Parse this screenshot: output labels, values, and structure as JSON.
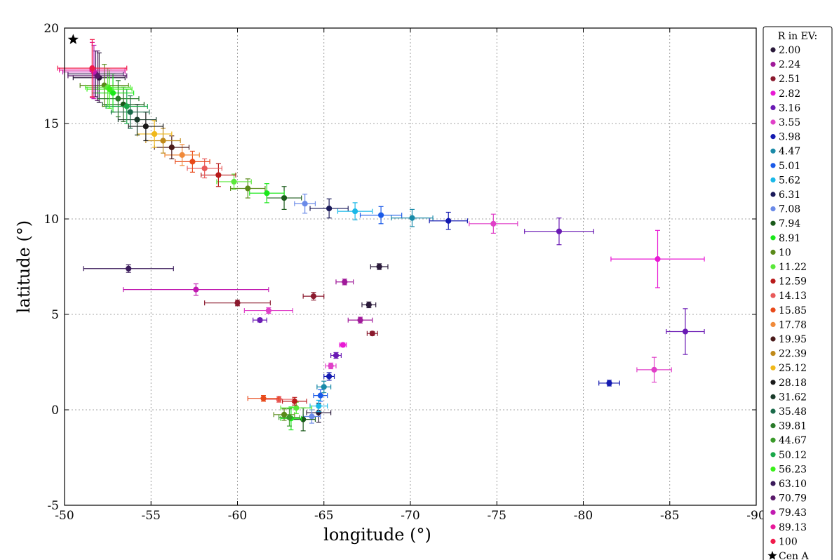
{
  "chart_data": {
    "type": "scatter",
    "title": "",
    "xlabel": "longitude (°)",
    "ylabel": "latitude (°)",
    "xlim": [
      -50,
      -90
    ],
    "ylim": [
      -5,
      20
    ],
    "xticks": [
      -50,
      -55,
      -60,
      -65,
      -70,
      -75,
      -80,
      -85,
      -90
    ],
    "yticks": [
      -5,
      0,
      5,
      10,
      15,
      20
    ],
    "grid": true,
    "legend_title": "R in EV:",
    "legend_position": "right",
    "reference_point": {
      "label": "Cen A",
      "x": -50.5,
      "y": 19.4,
      "marker": "star",
      "color": "#000000"
    },
    "series": [
      {
        "name": "2.00",
        "color": "#2a1a3a",
        "points": [
          {
            "x": -52.0,
            "y": 17.4,
            "xerr": 1.5,
            "yerr": 1.3
          },
          {
            "x": -68.2,
            "y": 7.5,
            "xerr": 0.5,
            "yerr": 0.15
          },
          {
            "x": -67.6,
            "y": 5.5,
            "xerr": 0.4,
            "yerr": 0.15
          },
          {
            "x": -64.7,
            "y": -0.15,
            "xerr": 0.7,
            "yerr": 0.5
          }
        ]
      },
      {
        "name": "2.24",
        "color": "#a01a9a",
        "points": [
          {
            "x": -66.2,
            "y": 6.7,
            "xerr": 0.5,
            "yerr": 0.15
          },
          {
            "x": -67.1,
            "y": 4.7,
            "xerr": 0.7,
            "yerr": 0.15
          }
        ]
      },
      {
        "name": "2.51",
        "color": "#8b1a2e",
        "points": [
          {
            "x": -64.4,
            "y": 5.95,
            "xerr": 0.6,
            "yerr": 0.2
          },
          {
            "x": -67.8,
            "y": 4.0,
            "xerr": 0.3,
            "yerr": 0.1
          },
          {
            "x": -60.0,
            "y": 5.6,
            "xerr": 1.9,
            "yerr": 0.15
          }
        ]
      },
      {
        "name": "2.82",
        "color": "#e81ad4",
        "points": [
          {
            "x": -84.3,
            "y": 7.9,
            "xerr": 2.7,
            "yerr": 1.5
          },
          {
            "x": -66.1,
            "y": 3.4,
            "xerr": 0.2,
            "yerr": 0.1
          }
        ]
      },
      {
        "name": "3.16",
        "color": "#6a1ab4",
        "points": [
          {
            "x": -78.6,
            "y": 9.35,
            "xerr": 2.0,
            "yerr": 0.7
          },
          {
            "x": -85.9,
            "y": 4.1,
            "xerr": 1.1,
            "yerr": 1.2
          },
          {
            "x": -61.3,
            "y": 4.7,
            "xerr": 0.4,
            "yerr": 0.1
          },
          {
            "x": -65.7,
            "y": 2.85,
            "xerr": 0.3,
            "yerr": 0.15
          }
        ]
      },
      {
        "name": "3.55",
        "color": "#e040c8",
        "points": [
          {
            "x": -74.8,
            "y": 9.75,
            "xerr": 1.4,
            "yerr": 0.5
          },
          {
            "x": -84.1,
            "y": 2.1,
            "xerr": 1.0,
            "yerr": 0.65
          },
          {
            "x": -65.4,
            "y": 2.3,
            "xerr": 0.3,
            "yerr": 0.15
          },
          {
            "x": -61.8,
            "y": 5.2,
            "xerr": 1.4,
            "yerr": 0.15
          }
        ]
      },
      {
        "name": "3.98",
        "color": "#141ab0",
        "points": [
          {
            "x": -72.2,
            "y": 9.9,
            "xerr": 1.1,
            "yerr": 0.45
          },
          {
            "x": -81.5,
            "y": 1.4,
            "xerr": 0.6,
            "yerr": 0.15
          },
          {
            "x": -65.3,
            "y": 1.75,
            "xerr": 0.3,
            "yerr": 0.2
          }
        ]
      },
      {
        "name": "4.47",
        "color": "#1a8aa8",
        "points": [
          {
            "x": -70.1,
            "y": 10.05,
            "xerr": 1.2,
            "yerr": 0.45
          },
          {
            "x": -65.0,
            "y": 1.2,
            "xerr": 0.4,
            "yerr": 0.3
          }
        ]
      },
      {
        "name": "5.01",
        "color": "#1a5ae8",
        "points": [
          {
            "x": -68.3,
            "y": 10.2,
            "xerr": 1.2,
            "yerr": 0.45
          },
          {
            "x": -64.8,
            "y": 0.75,
            "xerr": 0.4,
            "yerr": 0.3
          }
        ]
      },
      {
        "name": "5.62",
        "color": "#1ab8e8",
        "points": [
          {
            "x": -66.8,
            "y": 10.4,
            "xerr": 1.0,
            "yerr": 0.45
          },
          {
            "x": -64.7,
            "y": 0.2,
            "xerr": 0.5,
            "yerr": 0.3
          }
        ]
      },
      {
        "name": "6.31",
        "color": "#1a1a5a",
        "points": [
          {
            "x": -65.3,
            "y": 10.55,
            "xerr": 1.1,
            "yerr": 0.5
          }
        ]
      },
      {
        "name": "7.08",
        "color": "#6a8ae8",
        "points": [
          {
            "x": -63.9,
            "y": 10.8,
            "xerr": 0.6,
            "yerr": 0.5
          },
          {
            "x": -64.3,
            "y": -0.35,
            "xerr": 0.5,
            "yerr": 0.35
          }
        ]
      },
      {
        "name": "7.94",
        "color": "#1a5a1a",
        "points": [
          {
            "x": -53.4,
            "y": 16.0,
            "xerr": 1.2,
            "yerr": 0.9
          },
          {
            "x": -62.7,
            "y": 11.1,
            "xerr": 1.0,
            "yerr": 0.6
          },
          {
            "x": -63.8,
            "y": -0.5,
            "xerr": 0.7,
            "yerr": 0.6
          }
        ]
      },
      {
        "name": "8.91",
        "color": "#1ae81a",
        "points": [
          {
            "x": -52.8,
            "y": 16.6,
            "xerr": 1.2,
            "yerr": 1.0
          },
          {
            "x": -61.7,
            "y": 11.35,
            "xerr": 1.0,
            "yerr": 0.5
          },
          {
            "x": -63.1,
            "y": -0.45,
            "xerr": 0.6,
            "yerr": 0.6
          }
        ]
      },
      {
        "name": "10",
        "color": "#5a8a1a",
        "points": [
          {
            "x": -52.3,
            "y": 17.0,
            "xerr": 1.4,
            "yerr": 1.1
          },
          {
            "x": -60.6,
            "y": 11.6,
            "xerr": 1.0,
            "yerr": 0.5
          },
          {
            "x": -62.7,
            "y": -0.25,
            "xerr": 0.6,
            "yerr": 0.3
          }
        ]
      },
      {
        "name": "11.22",
        "color": "#5ae83a",
        "points": [
          {
            "x": -52.5,
            "y": 16.9,
            "xerr": 1.3,
            "yerr": 1.0
          },
          {
            "x": -59.8,
            "y": 11.95,
            "xerr": 1.0,
            "yerr": 0.4
          },
          {
            "x": -63.4,
            "y": 0.1,
            "xerr": 0.9,
            "yerr": 0.3
          }
        ]
      },
      {
        "name": "12.59",
        "color": "#b81a1a",
        "points": [
          {
            "x": -58.9,
            "y": 12.3,
            "xerr": 1.0,
            "yerr": 0.6
          },
          {
            "x": -63.3,
            "y": 0.45,
            "xerr": 0.7,
            "yerr": 0.2
          }
        ]
      },
      {
        "name": "14.13",
        "color": "#e85a5a",
        "points": [
          {
            "x": -58.1,
            "y": 12.65,
            "xerr": 1.0,
            "yerr": 0.5
          },
          {
            "x": -62.4,
            "y": 0.55,
            "xerr": 0.8,
            "yerr": 0.15
          }
        ]
      },
      {
        "name": "15.85",
        "color": "#e84a1a",
        "points": [
          {
            "x": -57.4,
            "y": 13.0,
            "xerr": 1.0,
            "yerr": 0.55
          },
          {
            "x": -61.5,
            "y": 0.6,
            "xerr": 0.9,
            "yerr": 0.15
          }
        ]
      },
      {
        "name": "17.78",
        "color": "#f08a3a",
        "points": [
          {
            "x": -56.8,
            "y": 13.35,
            "xerr": 1.0,
            "yerr": 0.55
          }
        ]
      },
      {
        "name": "19.95",
        "color": "#4a1a1a",
        "points": [
          {
            "x": -56.2,
            "y": 13.75,
            "xerr": 1.0,
            "yerr": 0.6
          }
        ]
      },
      {
        "name": "22.39",
        "color": "#c08a1a",
        "points": [
          {
            "x": -55.7,
            "y": 14.1,
            "xerr": 1.0,
            "yerr": 0.65
          }
        ]
      },
      {
        "name": "25.12",
        "color": "#f0b81a",
        "points": [
          {
            "x": -55.2,
            "y": 14.45,
            "xerr": 1.0,
            "yerr": 0.7
          }
        ]
      },
      {
        "name": "28.18",
        "color": "#1a1a1a",
        "points": [
          {
            "x": -54.7,
            "y": 14.85,
            "xerr": 1.0,
            "yerr": 0.75
          }
        ]
      },
      {
        "name": "31.62",
        "color": "#1a3a2a",
        "points": [
          {
            "x": -54.2,
            "y": 15.2,
            "xerr": 1.1,
            "yerr": 0.8
          }
        ]
      },
      {
        "name": "35.48",
        "color": "#1a6a4a",
        "points": [
          {
            "x": -53.8,
            "y": 15.6,
            "xerr": 1.1,
            "yerr": 0.85
          }
        ]
      },
      {
        "name": "39.81",
        "color": "#2a7a2a",
        "points": [
          {
            "x": -53.1,
            "y": 16.3,
            "xerr": 1.2,
            "yerr": 0.95
          }
        ]
      },
      {
        "name": "44.67",
        "color": "#3a9a2a",
        "points": [
          {
            "x": -63.0,
            "y": -0.4,
            "xerr": 0.6,
            "yerr": 0.45
          }
        ]
      },
      {
        "name": "50.12",
        "color": "#1aa84a",
        "points": [
          {
            "x": -53.6,
            "y": 15.9,
            "xerr": 1.2,
            "yerr": 0.9
          }
        ]
      },
      {
        "name": "56.23",
        "color": "#3af01a",
        "points": [
          {
            "x": -52.6,
            "y": 16.8,
            "xerr": 1.3,
            "yerr": 1.0
          }
        ]
      },
      {
        "name": "63.10",
        "color": "#3a1a5a",
        "points": [
          {
            "x": -53.7,
            "y": 7.4,
            "xerr": 2.6,
            "yerr": 0.2
          },
          {
            "x": -51.8,
            "y": 17.6,
            "xerr": 1.6,
            "yerr": 1.2
          }
        ]
      },
      {
        "name": "70.79",
        "color": "#5a1a6a",
        "points": [
          {
            "x": -51.9,
            "y": 17.5,
            "xerr": 1.7,
            "yerr": 1.3
          }
        ]
      },
      {
        "name": "79.43",
        "color": "#c01ab0",
        "points": [
          {
            "x": -57.6,
            "y": 6.3,
            "xerr": 4.2,
            "yerr": 0.3
          },
          {
            "x": -51.7,
            "y": 17.7,
            "xerr": 1.8,
            "yerr": 1.4
          }
        ]
      },
      {
        "name": "89.13",
        "color": "#e81a9a",
        "points": [
          {
            "x": -51.6,
            "y": 17.8,
            "xerr": 1.9,
            "yerr": 1.45
          }
        ]
      },
      {
        "name": "100",
        "color": "#f01a4a",
        "points": [
          {
            "x": -51.6,
            "y": 17.9,
            "xerr": 2.0,
            "yerr": 1.5
          }
        ]
      }
    ]
  }
}
